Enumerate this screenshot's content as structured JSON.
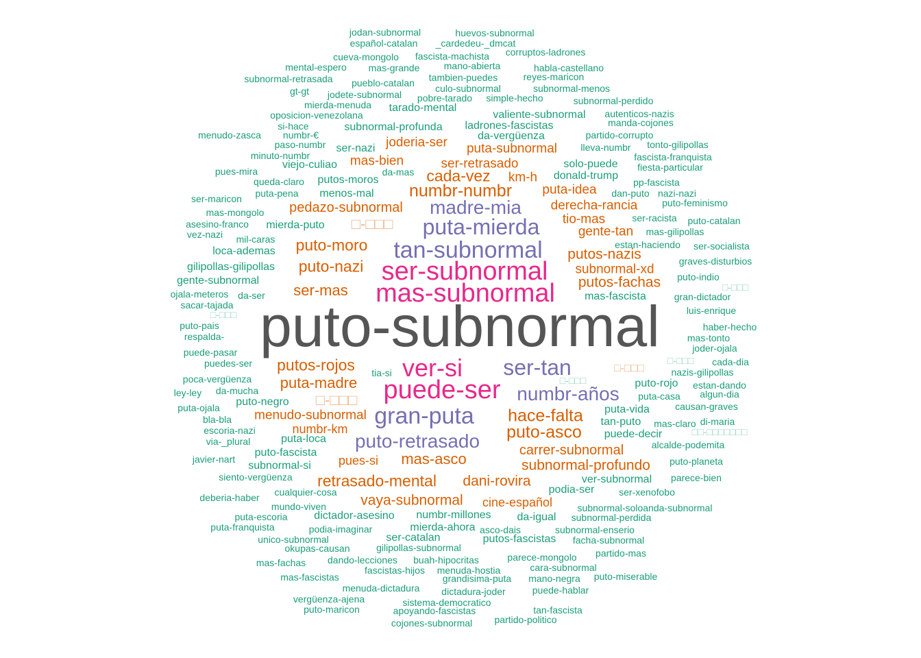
{
  "palette": {
    "green": "#1b9e77",
    "orange": "#d95f02",
    "purple": "#7570b3",
    "pink": "#e7298a",
    "gray": "#555555"
  },
  "words": [
    {
      "id": "w1",
      "text": "puto-subnormal"
    },
    {
      "id": "w2",
      "text": "ser-subnormal"
    },
    {
      "id": "w3",
      "text": "mas-subnormal"
    },
    {
      "id": "w4",
      "text": "puede-ser"
    },
    {
      "id": "w5",
      "text": "ver-si"
    },
    {
      "id": "w6",
      "text": "tan-subnormal"
    },
    {
      "id": "w7",
      "text": "puta-mierda"
    },
    {
      "id": "w8",
      "text": "gran-puta"
    },
    {
      "id": "w9",
      "text": "ser-tan"
    },
    {
      "id": "w10",
      "text": "madre-mia"
    },
    {
      "id": "w11",
      "text": "puto-retrasado"
    },
    {
      "id": "w12",
      "text": "numbr-años"
    },
    {
      "id": "w13",
      "text": "numbr-numbr"
    },
    {
      "id": "w14",
      "text": "cada-vez"
    },
    {
      "id": "w15",
      "text": "puto-asco"
    },
    {
      "id": "w16",
      "text": "hace-falta"
    },
    {
      "id": "w17",
      "text": "puto-moro"
    },
    {
      "id": "w18",
      "text": "puto-nazi"
    },
    {
      "id": "w19",
      "text": "putos-rojos"
    },
    {
      "id": "w20",
      "text": "retrasado-mental"
    },
    {
      "id": "w21",
      "text": "puta-madre"
    },
    {
      "id": "w22",
      "text": "mas-asco"
    },
    {
      "id": "w23",
      "text": "subnormal-profundo"
    },
    {
      "id": "w24",
      "text": "ser-mas"
    },
    {
      "id": "w25",
      "text": "putos-nazis"
    },
    {
      "id": "w26",
      "text": "putos-fachas"
    },
    {
      "id": "w27",
      "text": "dani-rovira"
    },
    {
      "id": "w28",
      "text": "vaya-subnormal"
    },
    {
      "id": "w29",
      "text": "pedazo-subnormal"
    },
    {
      "id": "w30",
      "text": "carrer-subnormal"
    },
    {
      "id": "w31",
      "text": "menudo-subnormal"
    },
    {
      "id": "w32",
      "text": "derecha-rancia"
    },
    {
      "id": "w33",
      "text": "puta-subnormal"
    },
    {
      "id": "w34",
      "text": "joderia-ser"
    },
    {
      "id": "w35",
      "text": "subnormal-xd"
    },
    {
      "id": "w36",
      "text": "ser-retrasado"
    },
    {
      "id": "w37",
      "text": "puta-idea"
    },
    {
      "id": "w38",
      "text": "mas-bien"
    },
    {
      "id": "w39",
      "text": "tio-mas"
    },
    {
      "id": "w40",
      "text": "gente-tan"
    },
    {
      "id": "w41",
      "text": "km-h"
    },
    {
      "id": "w42",
      "text": "numbr-km"
    },
    {
      "id": "w43",
      "text": "pues-si"
    },
    {
      "id": "w44",
      "text": "cine-español"
    },
    {
      "id": "w45",
      "text": "da-vergüenza"
    },
    {
      "id": "w46",
      "text": "jodan-subnormal"
    },
    {
      "id": "w47",
      "text": "huevos-subnormal"
    },
    {
      "id": "w48",
      "text": "español-catalan"
    },
    {
      "id": "w49",
      "text": "_cardedeu-_dmcat"
    },
    {
      "id": "w50",
      "text": "cueva-mongolo"
    },
    {
      "id": "w51",
      "text": "fascista-machista"
    },
    {
      "id": "w52",
      "text": "corruptos-ladrones"
    },
    {
      "id": "w53",
      "text": "mental-espero"
    },
    {
      "id": "w54",
      "text": "mas-grande"
    },
    {
      "id": "w55",
      "text": "mano-abierta"
    },
    {
      "id": "w56",
      "text": "habla-castellano"
    },
    {
      "id": "w57",
      "text": "subnormal-retrasada"
    },
    {
      "id": "w58",
      "text": "tambien-puedes"
    },
    {
      "id": "w59",
      "text": "reyes-maricon"
    },
    {
      "id": "w60",
      "text": "pueblo-catalan"
    },
    {
      "id": "w61",
      "text": "culo-subnormal"
    },
    {
      "id": "w62",
      "text": "subnormal-menos"
    },
    {
      "id": "w63",
      "text": "gt-gt"
    },
    {
      "id": "w64",
      "text": "jodete-subnormal"
    },
    {
      "id": "w65",
      "text": "pobre-tarado"
    },
    {
      "id": "w66",
      "text": "simple-hecho"
    },
    {
      "id": "w67",
      "text": "subnormal-perdido"
    },
    {
      "id": "w68",
      "text": "mierda-menuda"
    },
    {
      "id": "w69",
      "text": "tarado-mental"
    },
    {
      "id": "w70",
      "text": "oposicion-venezolana"
    },
    {
      "id": "w71",
      "text": "valiente-subnormal"
    },
    {
      "id": "w72",
      "text": "autenticos-nazis"
    },
    {
      "id": "w73",
      "text": "si-hace"
    },
    {
      "id": "w74",
      "text": "subnormal-profunda"
    },
    {
      "id": "w75",
      "text": "ladrones-fascistas"
    },
    {
      "id": "w76",
      "text": "manda-cojones"
    },
    {
      "id": "w77",
      "text": "menudo-zasca"
    },
    {
      "id": "w78",
      "text": "numbr-€"
    },
    {
      "id": "w79",
      "text": "partido-corrupto"
    },
    {
      "id": "w80",
      "text": "paso-numbr"
    },
    {
      "id": "w81",
      "text": "ser-nazi"
    },
    {
      "id": "w82",
      "text": "lleva-numbr"
    },
    {
      "id": "w83",
      "text": "tonto-gilipollas"
    },
    {
      "id": "w84",
      "text": "minuto-numbr"
    },
    {
      "id": "w85",
      "text": "fascista-franquista"
    },
    {
      "id": "w86",
      "text": "viejo-culiao"
    },
    {
      "id": "w87",
      "text": "solo-puede"
    },
    {
      "id": "w88",
      "text": "fiesta-particular"
    },
    {
      "id": "w89",
      "text": "pues-mira"
    },
    {
      "id": "w90",
      "text": "da-mas"
    },
    {
      "id": "w91",
      "text": "donald-trump"
    },
    {
      "id": "w92",
      "text": "queda-claro"
    },
    {
      "id": "w93",
      "text": "putos-moros"
    },
    {
      "id": "w94",
      "text": "pp-fascista"
    },
    {
      "id": "w95",
      "text": "puta-pena"
    },
    {
      "id": "w96",
      "text": "dan-puto"
    },
    {
      "id": "w97",
      "text": "nazi-nazi"
    },
    {
      "id": "w98",
      "text": "ser-maricon"
    },
    {
      "id": "w99",
      "text": "menos-mal"
    },
    {
      "id": "w100",
      "text": "puto-feminismo"
    },
    {
      "id": "w101",
      "text": "mas-mongolo"
    },
    {
      "id": "w102",
      "text": "ser-racista"
    },
    {
      "id": "w103",
      "text": "puto-catalan"
    },
    {
      "id": "w104",
      "text": "asesino-franco"
    },
    {
      "id": "w105",
      "text": "mierda-puto"
    },
    {
      "id": "w106",
      "text": "mas-gilipollas"
    },
    {
      "id": "w107",
      "text": "vez-nazi"
    },
    {
      "id": "w108",
      "text": "mil-caras"
    },
    {
      "id": "w109",
      "text": "estan-haciendo"
    },
    {
      "id": "w110",
      "text": "ser-socialista"
    },
    {
      "id": "w111",
      "text": "loca-ademas"
    },
    {
      "id": "w112",
      "text": "graves-disturbios"
    },
    {
      "id": "w113",
      "text": "gilipollas-gilipollas"
    },
    {
      "id": "w114",
      "text": "puto-indio"
    },
    {
      "id": "w115",
      "text": "gente-subnormal"
    },
    {
      "id": "w116",
      "text": "ojala-meteros"
    },
    {
      "id": "w117",
      "text": "da-ser"
    },
    {
      "id": "w118",
      "text": "mas-fascista"
    },
    {
      "id": "w119",
      "text": "gran-dictador"
    },
    {
      "id": "w120",
      "text": "sacar-tajada"
    },
    {
      "id": "w121",
      "text": "luis-enrique"
    },
    {
      "id": "w122",
      "text": "puto-pais"
    },
    {
      "id": "w123",
      "text": "haber-hecho"
    },
    {
      "id": "w124",
      "text": "respalda-"
    },
    {
      "id": "w125",
      "text": "mas-tonto"
    },
    {
      "id": "w126",
      "text": "joder-ojala"
    },
    {
      "id": "w127",
      "text": "puede-pasar"
    },
    {
      "id": "w128",
      "text": "puedes-ser"
    },
    {
      "id": "w129",
      "text": "cada-dia"
    },
    {
      "id": "w130",
      "text": "tia-si"
    },
    {
      "id": "w131",
      "text": "nazis-gilipollas"
    },
    {
      "id": "w132",
      "text": "poca-vergüenza"
    },
    {
      "id": "w133",
      "text": "puto-rojo"
    },
    {
      "id": "w134",
      "text": "estan-dando"
    },
    {
      "id": "w135",
      "text": "ley-ley"
    },
    {
      "id": "w136",
      "text": "da-mucha"
    },
    {
      "id": "w137",
      "text": "puta-casa"
    },
    {
      "id": "w138",
      "text": "algun-dia"
    },
    {
      "id": "w139",
      "text": "puto-negro"
    },
    {
      "id": "w140",
      "text": "causan-graves"
    },
    {
      "id": "w141",
      "text": "puta-ojala"
    },
    {
      "id": "w142",
      "text": "puta-vida"
    },
    {
      "id": "w143",
      "text": "bla-bla"
    },
    {
      "id": "w144",
      "text": "tan-puto"
    },
    {
      "id": "w145",
      "text": "mas-claro"
    },
    {
      "id": "w146",
      "text": "di-maria"
    },
    {
      "id": "w147",
      "text": "escoria-nazi"
    },
    {
      "id": "w148",
      "text": "puede-decir"
    },
    {
      "id": "w149",
      "text": "via-_plural"
    },
    {
      "id": "w150",
      "text": "puta-loca"
    },
    {
      "id": "w151",
      "text": "alcalde-podemita"
    },
    {
      "id": "w152",
      "text": "puto-fascista"
    },
    {
      "id": "w153",
      "text": "javier-nart"
    },
    {
      "id": "w154",
      "text": "puto-planeta"
    },
    {
      "id": "w155",
      "text": "subnormal-si"
    },
    {
      "id": "w156",
      "text": "siento-vergüenza"
    },
    {
      "id": "w157",
      "text": "ver-subnormal"
    },
    {
      "id": "w158",
      "text": "parece-bien"
    },
    {
      "id": "w159",
      "text": "podia-ser"
    },
    {
      "id": "w160",
      "text": "deberia-haber"
    },
    {
      "id": "w161",
      "text": "cualquier-cosa"
    },
    {
      "id": "w162",
      "text": "ser-xenofobo"
    },
    {
      "id": "w163",
      "text": "mundo-viven"
    },
    {
      "id": "w164",
      "text": "subnormal-soloanda-subnormal"
    },
    {
      "id": "w165",
      "text": "puta-escoria"
    },
    {
      "id": "w166",
      "text": "dictador-asesino"
    },
    {
      "id": "w167",
      "text": "numbr-millones"
    },
    {
      "id": "w168",
      "text": "da-igual"
    },
    {
      "id": "w169",
      "text": "subnormal-perdida"
    },
    {
      "id": "w170",
      "text": "puta-franquista"
    },
    {
      "id": "w171",
      "text": "podia-imaginar"
    },
    {
      "id": "w172",
      "text": "mierda-ahora"
    },
    {
      "id": "w173",
      "text": "asco-dais"
    },
    {
      "id": "w174",
      "text": "subnormal-enserio"
    },
    {
      "id": "w175",
      "text": "unico-subnormal"
    },
    {
      "id": "w176",
      "text": "ser-catalan"
    },
    {
      "id": "w177",
      "text": "putos-fascistas"
    },
    {
      "id": "w178",
      "text": "facha-subnormal"
    },
    {
      "id": "w179",
      "text": "okupas-causan"
    },
    {
      "id": "w180",
      "text": "gilipollas-subnormal"
    },
    {
      "id": "w181",
      "text": "parece-mongolo"
    },
    {
      "id": "w182",
      "text": "partido-mas"
    },
    {
      "id": "w183",
      "text": "mas-fachas"
    },
    {
      "id": "w184",
      "text": "dando-lecciones"
    },
    {
      "id": "w185",
      "text": "buah-hipocritas"
    },
    {
      "id": "w186",
      "text": "cara-subnormal"
    },
    {
      "id": "w187",
      "text": "fascistas-hijos"
    },
    {
      "id": "w188",
      "text": "menuda-hostia"
    },
    {
      "id": "w189",
      "text": "mas-fascistas"
    },
    {
      "id": "w190",
      "text": "grandisima-puta"
    },
    {
      "id": "w191",
      "text": "mano-negra"
    },
    {
      "id": "w192",
      "text": "puto-miserable"
    },
    {
      "id": "w193",
      "text": "menuda-dictadura"
    },
    {
      "id": "w194",
      "text": "dictadura-joder"
    },
    {
      "id": "w195",
      "text": "puede-hablar"
    },
    {
      "id": "w196",
      "text": "vergüenza-ajena"
    },
    {
      "id": "w197",
      "text": "sistema-democratico"
    },
    {
      "id": "w198",
      "text": "puto-maricon"
    },
    {
      "id": "w199",
      "text": "apoyando-fascistas"
    },
    {
      "id": "w200",
      "text": "tan-fascista"
    },
    {
      "id": "w201",
      "text": "cojones-subnormal"
    },
    {
      "id": "w202",
      "text": "partido-politico"
    },
    {
      "id": "w203",
      "text": "□-□□□"
    },
    {
      "id": "w204",
      "text": "□-□□□"
    },
    {
      "id": "w205",
      "text": "□-□□□"
    },
    {
      "id": "w206",
      "text": "□-□□□"
    },
    {
      "id": "w207",
      "text": "□-□□□"
    },
    {
      "id": "w208",
      "text": "□-□□□"
    },
    {
      "id": "w209",
      "text": "□-□□□"
    },
    {
      "id": "w210",
      "text": "□□-□□□□□□□"
    }
  ]
}
